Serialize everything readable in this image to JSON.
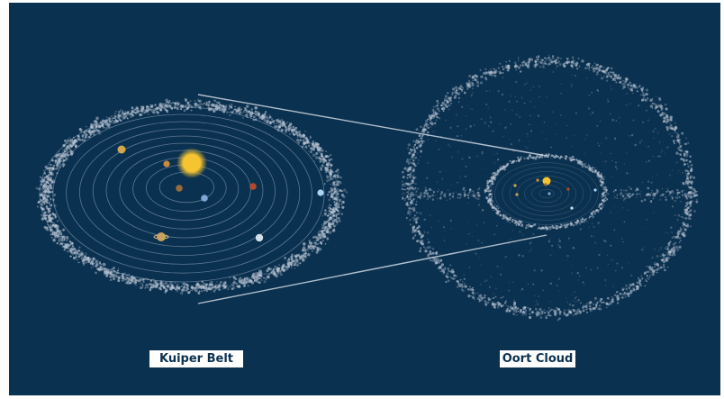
{
  "labels": {
    "kuiper": "Kuiper Belt",
    "oort": "Oort Cloud"
  },
  "colors": {
    "background": "#0b3150",
    "dust": "#b9c4d2",
    "orbit": "#9fb3c6",
    "sun": "#f5c430",
    "label_text": "#0b3150",
    "label_bg": "#ffffff"
  },
  "planets": [
    {
      "color": "#d2a64d"
    },
    {
      "color": "#c98a3c"
    },
    {
      "color": "#9b6a3a"
    },
    {
      "color": "#7fa6d6"
    },
    {
      "color": "#b54a2a"
    },
    {
      "color": "#c9a25c"
    },
    {
      "color": "#cfe0ea"
    },
    {
      "color": "#a9d4f2"
    }
  ]
}
